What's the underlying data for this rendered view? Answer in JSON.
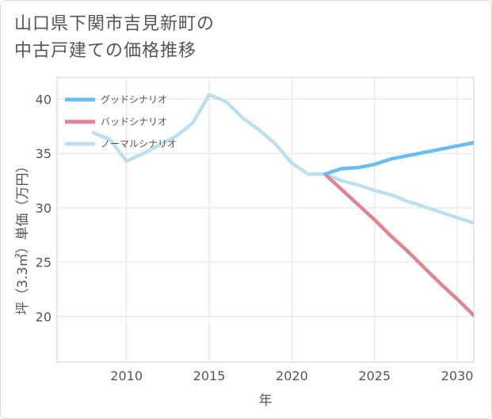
{
  "title_lines": [
    "山口県下関市吉見新町の",
    "中古戸建ての価格推移"
  ],
  "chart_data": {
    "type": "line",
    "title": "山口県下関市吉見新町の中古戸建ての価格推移",
    "xlabel": "年",
    "ylabel": "坪（3.3㎡）単価（万円）",
    "xlim": [
      2005.8,
      2031
    ],
    "ylim": [
      15.8,
      42
    ],
    "x_ticks": [
      2010,
      2015,
      2020,
      2025,
      2030
    ],
    "y_ticks": [
      20,
      25,
      30,
      35,
      40
    ],
    "grid": true,
    "legend_position": "top-left",
    "series": [
      {
        "name": "グッドシナリオ",
        "color": "#6bbcef",
        "x": [
          2022,
          2023,
          2024,
          2025,
          2026,
          2027,
          2028,
          2029,
          2030,
          2031
        ],
        "values": [
          33.1,
          33.6,
          33.7,
          34.0,
          34.5,
          34.8,
          35.1,
          35.4,
          35.7,
          36.0
        ]
      },
      {
        "name": "バッドシナリオ",
        "color": "#e0848f",
        "x": [
          2022,
          2023,
          2024,
          2025,
          2026,
          2027,
          2028,
          2029,
          2030,
          2031
        ],
        "values": [
          33.1,
          31.7,
          30.3,
          28.9,
          27.4,
          26.0,
          24.5,
          23.0,
          21.6,
          20.1
        ]
      },
      {
        "name": "ノーマルシナリオ",
        "color": "#bde0ee",
        "x": [
          2008,
          2009,
          2010,
          2011,
          2012,
          2013,
          2014,
          2015,
          2016,
          2017,
          2018,
          2019,
          2020,
          2021,
          2022,
          2023,
          2024,
          2025,
          2026,
          2027,
          2028,
          2029,
          2030,
          2031
        ],
        "values": [
          36.9,
          36.3,
          34.3,
          35.0,
          35.8,
          36.6,
          37.8,
          40.4,
          39.8,
          38.3,
          37.2,
          35.9,
          34.1,
          33.1,
          33.1,
          32.5,
          32.1,
          31.6,
          31.2,
          30.6,
          30.1,
          29.6,
          29.1,
          28.6
        ]
      }
    ]
  }
}
